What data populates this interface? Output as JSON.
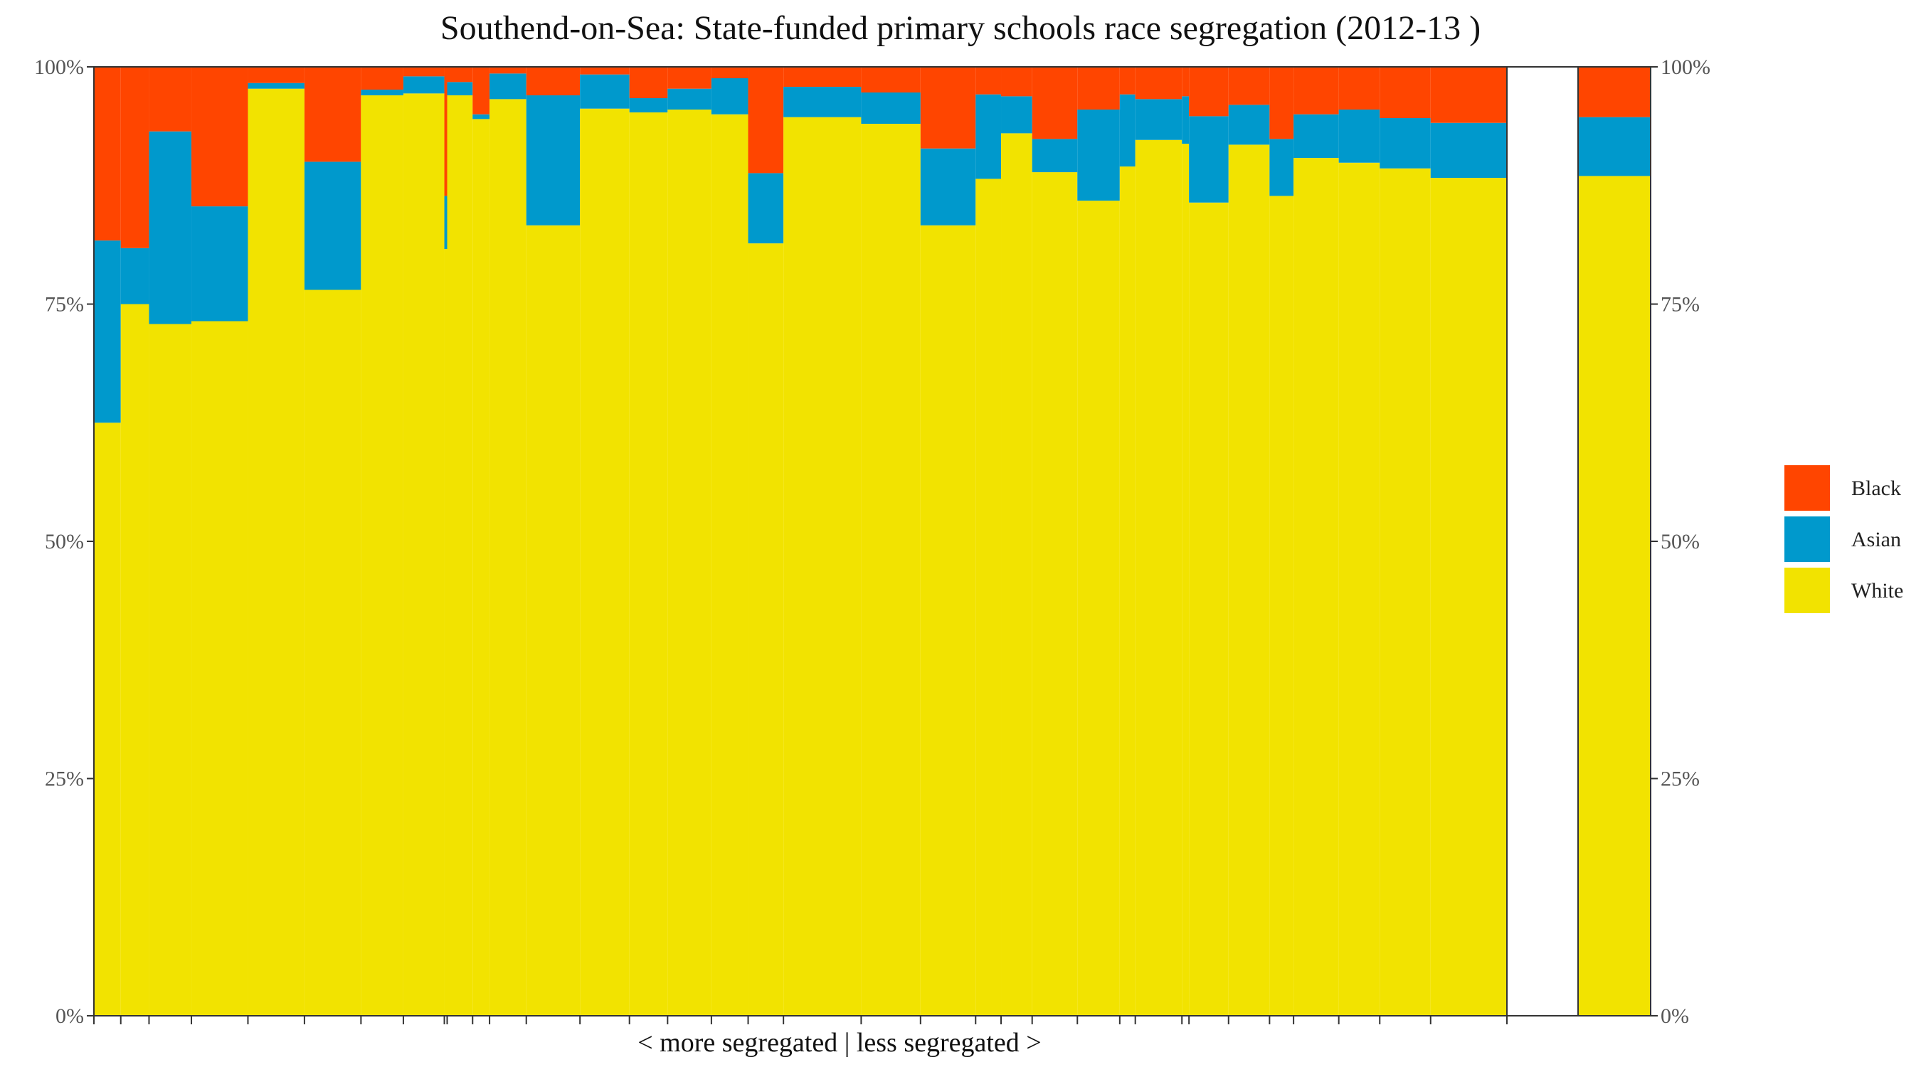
{
  "chart_data": {
    "type": "bar",
    "subtype": "stacked-variable-width",
    "title": "Southend-on-Sea: State-funded primary schools race segregation (2012-13 )",
    "xlabel": "< more segregated | less segregated >",
    "ylabel": "",
    "ylim": [
      0,
      100
    ],
    "y_ticks": [
      "0%",
      "25%",
      "50%",
      "75%",
      "100%"
    ],
    "legend": {
      "position": "right",
      "entries": [
        "Black",
        "Asian",
        "White"
      ]
    },
    "colors": {
      "White": "#f2e300",
      "Asian": "#0099cc",
      "Black": "#ff4500"
    },
    "x_axis": {
      "range": [
        0,
        100
      ],
      "gap": [
        79.5,
        84.4
      ],
      "summary_range": [
        84.4,
        89.4
      ]
    },
    "schools": [
      {
        "x0": 0.0,
        "x1": 1.9,
        "white": 62.5,
        "asian": 19.2,
        "black": 18.3
      },
      {
        "x0": 1.9,
        "x1": 3.9,
        "white": 75.0,
        "asian": 5.9,
        "black": 19.1
      },
      {
        "x0": 3.9,
        "x1": 6.9,
        "white": 72.9,
        "asian": 20.3,
        "black": 6.8
      },
      {
        "x0": 6.9,
        "x1": 10.9,
        "white": 73.2,
        "asian": 12.1,
        "black": 14.7
      },
      {
        "x0": 10.9,
        "x1": 14.9,
        "white": 97.7,
        "asian": 0.6,
        "black": 1.7
      },
      {
        "x0": 14.9,
        "x1": 18.9,
        "white": 76.5,
        "asian": 13.5,
        "black": 10.0
      },
      {
        "x0": 18.9,
        "x1": 21.9,
        "white": 97.0,
        "asian": 0.6,
        "black": 2.4
      },
      {
        "x0": 21.9,
        "x1": 24.8,
        "white": 97.2,
        "asian": 1.8,
        "black": 1.0
      },
      {
        "x0": 24.8,
        "x1": 25.0,
        "white": 80.8,
        "asian": 5.6,
        "black": 13.6
      },
      {
        "x0": 25.0,
        "x1": 26.8,
        "white": 97.0,
        "asian": 1.4,
        "black": 1.6
      },
      {
        "x0": 26.8,
        "x1": 28.0,
        "white": 94.5,
        "asian": 0.5,
        "black": 5.0
      },
      {
        "x0": 28.0,
        "x1": 30.6,
        "white": 96.6,
        "asian": 2.7,
        "black": 0.7
      },
      {
        "x0": 30.6,
        "x1": 34.4,
        "white": 83.3,
        "asian": 13.7,
        "black": 3.0
      },
      {
        "x0": 34.4,
        "x1": 37.9,
        "white": 95.6,
        "asian": 3.6,
        "black": 0.8
      },
      {
        "x0": 37.9,
        "x1": 40.6,
        "white": 95.2,
        "asian": 1.5,
        "black": 3.3
      },
      {
        "x0": 40.6,
        "x1": 43.7,
        "white": 95.5,
        "asian": 2.2,
        "black": 2.3
      },
      {
        "x0": 43.7,
        "x1": 46.3,
        "white": 95.0,
        "asian": 3.8,
        "black": 1.2
      },
      {
        "x0": 46.3,
        "x1": 48.8,
        "white": 81.4,
        "asian": 7.4,
        "black": 11.2
      },
      {
        "x0": 48.8,
        "x1": 54.3,
        "white": 94.7,
        "asian": 3.2,
        "black": 2.1
      },
      {
        "x0": 54.3,
        "x1": 58.5,
        "white": 94.0,
        "asian": 3.3,
        "black": 2.7
      },
      {
        "x0": 58.5,
        "x1": 62.4,
        "white": 83.3,
        "asian": 8.1,
        "black": 8.6
      },
      {
        "x0": 62.4,
        "x1": 64.2,
        "white": 88.2,
        "asian": 8.9,
        "black": 2.9
      },
      {
        "x0": 64.2,
        "x1": 66.4,
        "white": 93.0,
        "asian": 3.9,
        "black": 3.1
      },
      {
        "x0": 66.4,
        "x1": 69.6,
        "white": 88.9,
        "asian": 3.5,
        "black": 7.6
      },
      {
        "x0": 69.6,
        "x1": 72.6,
        "white": 85.9,
        "asian": 9.6,
        "black": 4.5
      },
      {
        "x0": 72.6,
        "x1": 73.7,
        "white": 89.5,
        "asian": 7.6,
        "black": 2.9
      },
      {
        "x0": 73.7,
        "x1": 77.0,
        "white": 92.3,
        "asian": 4.3,
        "black": 3.4
      },
      {
        "x0": 77.0,
        "x1": 77.5,
        "white": 91.9,
        "asian": 5.0,
        "black": 3.1
      },
      {
        "x0": 77.5,
        "x1": 80.3,
        "white": 85.7,
        "asian": 9.1,
        "black": 5.2
      },
      {
        "x0": 80.3,
        "x1": 83.2,
        "white": 91.8,
        "asian": 4.2,
        "black": 4.0
      },
      {
        "x0": 83.2,
        "x1": 84.9,
        "white": 86.4,
        "asian": 6.0,
        "black": 7.6
      },
      {
        "x0": 84.9,
        "x1": 88.1,
        "white": 90.4,
        "asian": 4.6,
        "black": 5.0
      },
      {
        "x0": 88.1,
        "x1": 91.0,
        "white": 89.9,
        "asian": 5.6,
        "black": 4.5
      },
      {
        "x0": 91.0,
        "x1": 94.6,
        "white": 89.3,
        "asian": 5.3,
        "black": 5.4
      },
      {
        "x0": 94.6,
        "x1": 100.0,
        "white": 88.3,
        "asian": 5.8,
        "black": 5.9
      }
    ],
    "summary": {
      "white": 88.5,
      "asian": 6.2,
      "black": 5.3
    }
  }
}
